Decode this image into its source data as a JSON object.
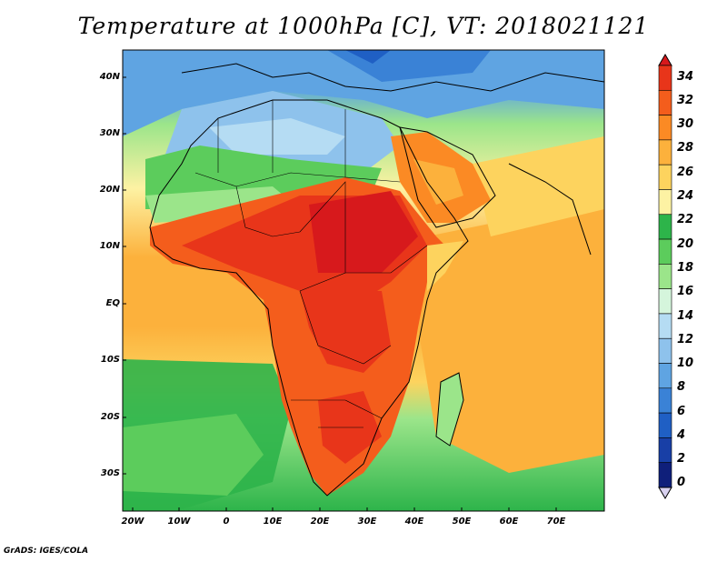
{
  "title": "Temperature at 1000hPa [C], VT: 2018021121",
  "credit": "GrADS: IGES/COLA",
  "lat_labels": [
    "40N",
    "30N",
    "20N",
    "10N",
    "EQ",
    "10S",
    "20S",
    "30S"
  ],
  "lon_labels": [
    "20W",
    "10W",
    "0",
    "10E",
    "20E",
    "30E",
    "40E",
    "50E",
    "60E",
    "70E"
  ],
  "colorbar": {
    "labels": [
      "34",
      "32",
      "30",
      "28",
      "26",
      "24",
      "22",
      "20",
      "18",
      "16",
      "14",
      "12",
      "10",
      "8",
      "6",
      "4",
      "2",
      "0"
    ],
    "colors": [
      "#d7191c",
      "#e8351a",
      "#f45d1c",
      "#fb8a24",
      "#fcb13c",
      "#fdd35e",
      "#fdf2a3",
      "#2db44a",
      "#5ccc5c",
      "#9be58a",
      "#d5f5dc",
      "#b5dcf3",
      "#8ec2ec",
      "#5fa4e2",
      "#3a82d6",
      "#1f5fc4",
      "#183fa6",
      "#0f1f7a",
      "#0a0a55"
    ]
  }
}
